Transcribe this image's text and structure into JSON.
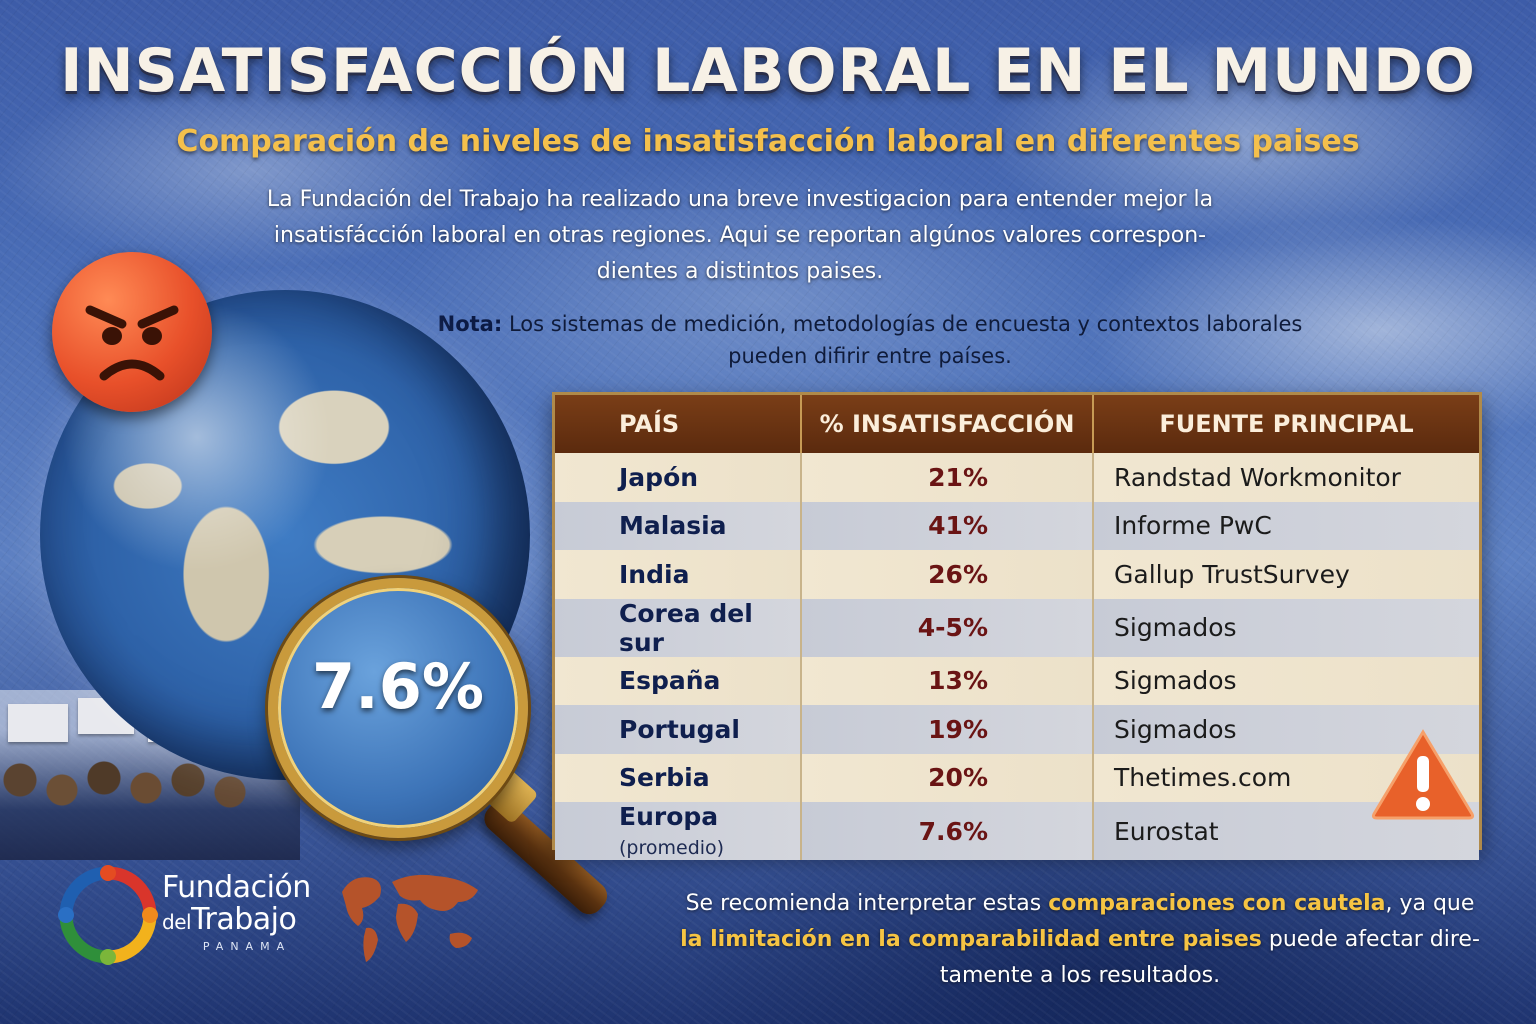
{
  "header": {
    "title": "INSATISFACCIÓN LABORAL EN EL MUNDO",
    "subtitle": "Comparación de niveles de insatisfacción laboral en diferentes paises"
  },
  "intro": {
    "line1": "La Fundación del Trabajo ha realizado una breve investigacion para entender mejor la",
    "line2": "insatisfácción laboral en otras regiones. Aqui se reportan algúnos valores correspon-",
    "line3": "dientes a distintos paises."
  },
  "note": {
    "label": "Nota:",
    "line1": "Los sistemas de medición, metodologías de encuesta y contextos laborales",
    "line2": "pueden difirir entre países."
  },
  "magnifier": {
    "value": "7.6%"
  },
  "table": {
    "headers": [
      "PAÍS",
      "% INSATISFACCIÓN",
      "FUENTE PRINCIPAL"
    ],
    "rows": [
      {
        "country": "Japón",
        "qualifier": "",
        "pct": "21%",
        "source": "Randstad Workmonitor"
      },
      {
        "country": "Malasia",
        "qualifier": "",
        "pct": "41%",
        "source": "Informe PwC"
      },
      {
        "country": "India",
        "qualifier": "",
        "pct": "26%",
        "source": "Gallup TrustSurvey"
      },
      {
        "country": "Corea del sur",
        "qualifier": "",
        "pct": "4-5%",
        "source": "Sigmados"
      },
      {
        "country": "España",
        "qualifier": "",
        "pct": "13%",
        "source": "Sigmados"
      },
      {
        "country": "Portugal",
        "qualifier": "",
        "pct": "19%",
        "source": "Sigmados"
      },
      {
        "country": "Serbia",
        "qualifier": "",
        "pct": "20%",
        "source": "Thetimes.com"
      },
      {
        "country": "Europa",
        "qualifier": "(promedio)",
        "pct": "7.6%",
        "source": "Eurostat"
      }
    ]
  },
  "logo": {
    "line1": "Fundación",
    "line2_small": "del",
    "line2": "Trabajo",
    "line3": "PANAMA"
  },
  "footer": {
    "part1": "Se recomienda interpretar estas ",
    "highlight1": "comparaciones con cautela",
    "part2": ", ya que",
    "highlight2": "la limitación en la comparabilidad entre paises",
    "part3": " puede afectar dire-",
    "part4": "tamente a los resultados."
  },
  "icons": {
    "face": "angry-face-icon",
    "warning": "warning-triangle-icon",
    "globe": "globe-icon",
    "magnifier": "magnifying-glass-icon",
    "worldmap": "world-map-icon",
    "logo": "logo-ring-icon"
  },
  "colors": {
    "title": "#f7f1e6",
    "subtitle": "#f4c04c",
    "table_header": "#6a3212",
    "percent": "#6a1414",
    "country": "#0f1f4e",
    "highlight": "#f6c443"
  }
}
